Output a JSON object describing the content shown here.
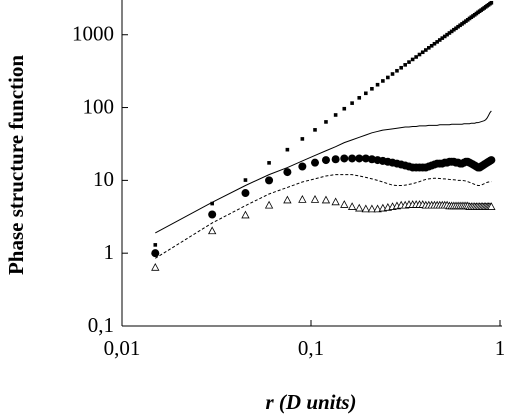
{
  "chart_data": {
    "type": "line",
    "xlabel": "r (D units)",
    "ylabel": "Phase structure function",
    "xlog": true,
    "ylog": true,
    "xlim": [
      0.01,
      1
    ],
    "ylim": [
      0.1,
      3000
    ],
    "xticks": [
      {
        "value": 0.01,
        "label": "0,01"
      },
      {
        "value": 0.1,
        "label": "0,1"
      },
      1
    ],
    "yticks": [
      {
        "value": 0.1,
        "label": "0,1"
      },
      1,
      10,
      100,
      1000
    ],
    "x": [
      0.015,
      0.03,
      0.045,
      0.06,
      0.075,
      0.09,
      0.105,
      0.12,
      0.135,
      0.15,
      0.165,
      0.18,
      0.195,
      0.21,
      0.225,
      0.24,
      0.255,
      0.27,
      0.285,
      0.3,
      0.315,
      0.33,
      0.345,
      0.36,
      0.375,
      0.39,
      0.405,
      0.42,
      0.435,
      0.45,
      0.465,
      0.48,
      0.495,
      0.51,
      0.525,
      0.54,
      0.555,
      0.57,
      0.585,
      0.6,
      0.615,
      0.63,
      0.645,
      0.66,
      0.675,
      0.69,
      0.705,
      0.72,
      0.735,
      0.75,
      0.765,
      0.78,
      0.795,
      0.81,
      0.825,
      0.84,
      0.855,
      0.87,
      0.885,
      0.9
    ],
    "series": [
      {
        "color": "#000000",
        "marker": "square",
        "line_style": "none",
        "values": [
          1.3,
          4.8,
          10.1,
          17.4,
          26.4,
          37.1,
          49.4,
          63.5,
          79.1,
          96.4,
          115,
          136,
          157,
          181,
          206,
          232,
          259,
          289,
          320,
          352,
          386,
          421,
          458,
          495,
          535,
          575,
          617,
          661,
          705,
          752,
          798,
          847,
          899,
          948,
          1002,
          1057,
          1112,
          1172,
          1227,
          1288,
          1349,
          1409,
          1472,
          1538,
          1603,
          1675,
          1742,
          1811,
          1879,
          1954,
          2032,
          2104,
          2178,
          2254,
          2333,
          2415,
          2500,
          2576,
          2667,
          2748
        ]
      },
      {
        "color": "#000000",
        "marker": "none",
        "line_style": "solid",
        "values": [
          1.9,
          5.0,
          8.5,
          12,
          15,
          18.5,
          22,
          25.5,
          29,
          33,
          36,
          39,
          42,
          45,
          47,
          49,
          50,
          51,
          52,
          53,
          54,
          54,
          55,
          55,
          56,
          56,
          56,
          57,
          57,
          57,
          57,
          58,
          58,
          58,
          58,
          58,
          59,
          59,
          59,
          59,
          59,
          59,
          60,
          60,
          60,
          60,
          61,
          61,
          61,
          62,
          62,
          63,
          64,
          65,
          66,
          68,
          72,
          78,
          85,
          90
        ]
      },
      {
        "color": "#000000",
        "marker": "circle",
        "line_style": "none",
        "values": [
          1.0,
          3.4,
          6.7,
          10,
          13,
          15.5,
          17.5,
          19,
          19.5,
          20,
          20,
          20,
          20,
          19.5,
          19,
          18.5,
          18,
          17.5,
          17,
          16.5,
          16,
          15.5,
          15,
          15,
          15,
          15,
          15,
          15.5,
          16,
          16.5,
          17,
          17,
          17,
          17.5,
          17.5,
          18,
          18,
          18,
          17.5,
          17.5,
          17,
          17,
          17.5,
          18,
          18,
          17.5,
          17,
          16.5,
          16,
          15.5,
          15,
          15,
          15.5,
          16,
          16.5,
          17,
          17.5,
          18,
          18.5,
          19
        ]
      },
      {
        "color": "#000000",
        "marker": "none",
        "line_style": "dashed",
        "values": [
          0.85,
          2.6,
          4.5,
          6.5,
          8,
          9.5,
          10.5,
          11.5,
          12,
          12,
          12,
          11.5,
          11,
          10.5,
          10,
          9.5,
          9,
          8.6,
          8.5,
          8.5,
          8.6,
          8.8,
          9,
          9.3,
          9.6,
          10,
          10.3,
          10.5,
          10.6,
          10.7,
          10.7,
          10.6,
          10.5,
          10.5,
          10.4,
          10.3,
          10.2,
          10.2,
          10.1,
          10,
          10,
          10,
          9.9,
          9.8,
          9.6,
          9.4,
          9.2,
          9,
          8.8,
          8.6,
          8.5,
          8.5,
          8.6,
          8.8,
          9,
          9.2,
          9.4,
          9.5,
          9.6,
          9.6
        ]
      },
      {
        "color": "#000000",
        "marker": "triangle",
        "line_style": "none",
        "values": [
          0.63,
          2.0,
          3.3,
          4.5,
          5.3,
          5.4,
          5.4,
          5.3,
          5.0,
          4.6,
          4.3,
          4.1,
          4.0,
          4.0,
          4.0,
          4.1,
          4.2,
          4.3,
          4.4,
          4.5,
          4.5,
          4.6,
          4.6,
          4.6,
          4.6,
          4.6,
          4.5,
          4.5,
          4.5,
          4.5,
          4.5,
          4.5,
          4.5,
          4.5,
          4.5,
          4.4,
          4.4,
          4.4,
          4.4,
          4.4,
          4.4,
          4.4,
          4.4,
          4.4,
          4.4,
          4.3,
          4.3,
          4.3,
          4.3,
          4.3,
          4.3,
          4.3,
          4.3,
          4.3,
          4.3,
          4.3,
          4.3,
          4.3,
          4.3,
          4.3
        ]
      }
    ]
  }
}
